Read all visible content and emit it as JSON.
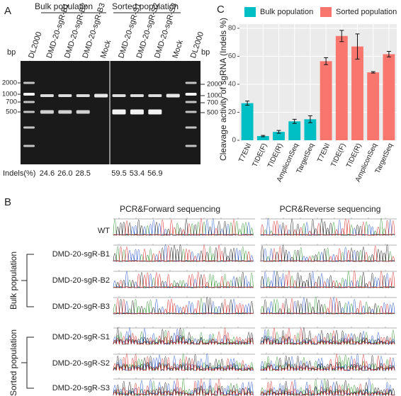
{
  "panel_a": {
    "label": "A",
    "groups": [
      "Bulk population",
      "Sorted population"
    ],
    "bp_left": "bp",
    "bp_right": "bp",
    "lanes": [
      "DL2000",
      "DMD-20-sgR-B1",
      "DMD-20-sgR-B2",
      "DMD-20-sgR-B3",
      "Mock",
      "DMD-20-sgR-S1",
      "DMD-20-sgR-S2",
      "DMD-20-sgR-S3",
      "Mock",
      "DL2000"
    ],
    "markers_left": [
      "2000",
      "1000",
      "700",
      "500"
    ],
    "markers_right": [
      "2000",
      "1000",
      "700",
      "500"
    ],
    "indels_label": "Indels(%)",
    "indels": [
      "24.6",
      "26.0",
      "28.5",
      "59.5",
      "53.4",
      "56.9"
    ]
  },
  "chart_data": {
    "type": "bar",
    "label": "C",
    "y_label": "Cleavage activity of sgRNA (Indels %)",
    "categories": [
      "T7ENI",
      "TIDE(F)",
      "TIDE(R)",
      "AmpliconSeq",
      "TargetSeq",
      "T7ENI",
      "TIDE(F)",
      "TIDE(R)",
      "AmpliconSeq",
      "TargetSeq"
    ],
    "series": [
      {
        "name": "Bulk population",
        "color": "#00bfc4",
        "values": [
          26.5,
          3,
          6,
          13.5,
          15,
          null,
          null,
          null,
          null,
          null
        ],
        "errors": [
          1.5,
          0.5,
          1,
          1.5,
          2.5,
          null,
          null,
          null,
          null,
          null
        ]
      },
      {
        "name": "Sorted population",
        "color": "#f8766d",
        "values": [
          null,
          null,
          null,
          null,
          null,
          56.5,
          74.5,
          67,
          48.5,
          61.5
        ],
        "errors": [
          null,
          null,
          null,
          null,
          null,
          2.5,
          4,
          9,
          0.5,
          2
        ]
      }
    ],
    "ylim": [
      0,
      83
    ],
    "yticks": [
      0,
      20,
      40,
      60,
      80
    ],
    "grid": true,
    "legend": "top"
  },
  "panel_b": {
    "label": "B",
    "headers": [
      "PCR&Forward sequencing",
      "PCR&Reverse sequencing"
    ],
    "samples": [
      "WT",
      "DMD-20-sgR-B1",
      "DMD-20-sgR-B2",
      "DMD-20-sgR-B3",
      "DMD-20-sgR-S1",
      "DMD-20-sgR-S2",
      "DMD-20-sgR-S3"
    ],
    "groups": [
      "Bulk population",
      "Sorted population"
    ]
  }
}
